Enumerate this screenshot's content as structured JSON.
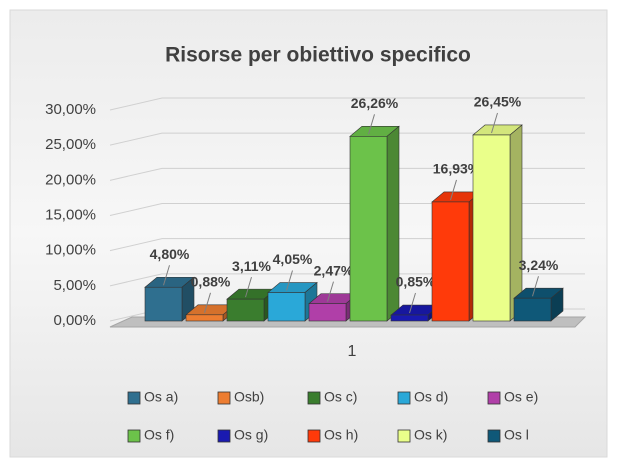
{
  "chart_data": {
    "type": "bar3d",
    "title": "Risorse per obiettivo specifico",
    "categories": [
      "1"
    ],
    "ylim": [
      0,
      30
    ],
    "yticks": [
      {
        "value": 0,
        "label": "0,00%"
      },
      {
        "value": 5,
        "label": "5,00%"
      },
      {
        "value": 10,
        "label": "10,00%"
      },
      {
        "value": 15,
        "label": "15,00%"
      },
      {
        "value": 20,
        "label": "20,00%"
      },
      {
        "value": 25,
        "label": "25,00%"
      },
      {
        "value": 30,
        "label": "30,00%"
      }
    ],
    "grid": true,
    "legend": "bottom",
    "series": [
      {
        "name": "Os a)",
        "color": "#2f6f8f",
        "values": [
          4.8
        ],
        "value_labels": [
          "4,80%"
        ]
      },
      {
        "name": "Osb)",
        "color": "#ed7d31",
        "values": [
          0.88
        ],
        "value_labels": [
          "0,88%"
        ]
      },
      {
        "name": "Os c)",
        "color": "#3a7d2e",
        "values": [
          3.11
        ],
        "value_labels": [
          "3,11%"
        ]
      },
      {
        "name": "Os d)",
        "color": "#2aa8d8",
        "values": [
          4.05
        ],
        "value_labels": [
          "4,05%"
        ]
      },
      {
        "name": "Os e)",
        "color": "#b03fa8",
        "values": [
          2.47
        ],
        "value_labels": [
          "2,47%"
        ]
      },
      {
        "name": "Os f)",
        "color": "#6cc24a",
        "values": [
          26.26
        ],
        "value_labels": [
          "26,26%"
        ]
      },
      {
        "name": "Os g)",
        "color": "#1a1ab0",
        "values": [
          0.85
        ],
        "value_labels": [
          "0,85%"
        ]
      },
      {
        "name": "Os h)",
        "color": "#ff3a0a",
        "values": [
          16.93
        ],
        "value_labels": [
          "16,93%"
        ]
      },
      {
        "name": "Os k)",
        "color": "#eaff8a",
        "values": [
          26.45
        ],
        "value_labels": [
          "26,45%"
        ]
      },
      {
        "name": "Os l",
        "color": "#0f5878",
        "values": [
          3.24
        ],
        "value_labels": [
          "3,24%"
        ]
      }
    ]
  }
}
